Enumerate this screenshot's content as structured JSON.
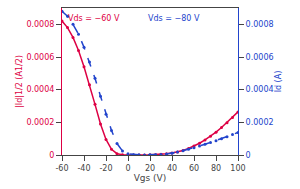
{
  "chart_data": {
    "type": "line",
    "x_label": "Vgs (V)",
    "y_label": "|Id|1/2 (A1/2)",
    "y2_label": "Id (A)",
    "x": [
      -60,
      -55,
      -50,
      -45,
      -40,
      -35,
      -30,
      -25,
      -20,
      -15,
      -10,
      -5,
      0,
      5,
      10,
      15,
      20,
      25,
      30,
      35,
      40,
      45,
      50,
      55,
      60,
      65,
      70,
      75,
      80,
      85,
      90,
      95,
      100
    ],
    "series": [
      {
        "color": "#dd0044",
        "line_style": "solid",
        "marker": "circle",
        "values": [
          0.00082,
          0.00078,
          0.00072,
          0.00064,
          0.00054,
          0.00043,
          0.00031,
          0.00019,
          9.5e-05,
          3.5e-05,
          8e-06,
          2e-06,
          5e-07,
          3e-07,
          3e-07,
          4e-07,
          1e-06,
          2e-06,
          4e-06,
          7e-06,
          1.2e-05,
          1.9e-05,
          2.8e-05,
          4e-05,
          5.5e-05,
          7.2e-05,
          9.2e-05,
          0.000115,
          0.00014,
          0.000168,
          0.000198,
          0.00023,
          0.000264
        ]
      },
      {
        "color": "#2244cc",
        "line_style": "dashed",
        "marker": "circle",
        "values": [
          0.00088,
          0.00085,
          0.0008,
          0.00074,
          0.00066,
          0.00057,
          0.00047,
          0.00036,
          0.00025,
          0.00015,
          7e-05,
          2.5e-05,
          7e-06,
          2e-06,
          8e-07,
          7e-07,
          8e-07,
          1.3e-06,
          3e-06,
          6e-06,
          1.1e-05,
          1.8e-05,
          2.6e-05,
          3.5e-05,
          4.5e-05,
          5.5e-05,
          6.6e-05,
          7.7e-05,
          8.8e-05,
          0.0001,
          0.000112,
          0.000125,
          0.000138
        ]
      }
    ],
    "xlim": [
      -60,
      100
    ],
    "xticks": [
      -60,
      -40,
      -20,
      0,
      20,
      40,
      60,
      80,
      100
    ],
    "ylim": [
      0,
      0.0009
    ],
    "yticks": [
      0,
      0.0002,
      0.0004,
      0.0006,
      0.0008
    ],
    "y2lim": [
      0,
      0.0009
    ],
    "y2ticks": [
      0,
      0.0002,
      0.0004,
      0.0006,
      0.0008
    ],
    "annotations": [
      {
        "text": "Vds = −60 V",
        "color": "#dd0044"
      },
      {
        "text": "Vds = −80 V",
        "color": "#2244cc"
      }
    ],
    "grid": false
  }
}
